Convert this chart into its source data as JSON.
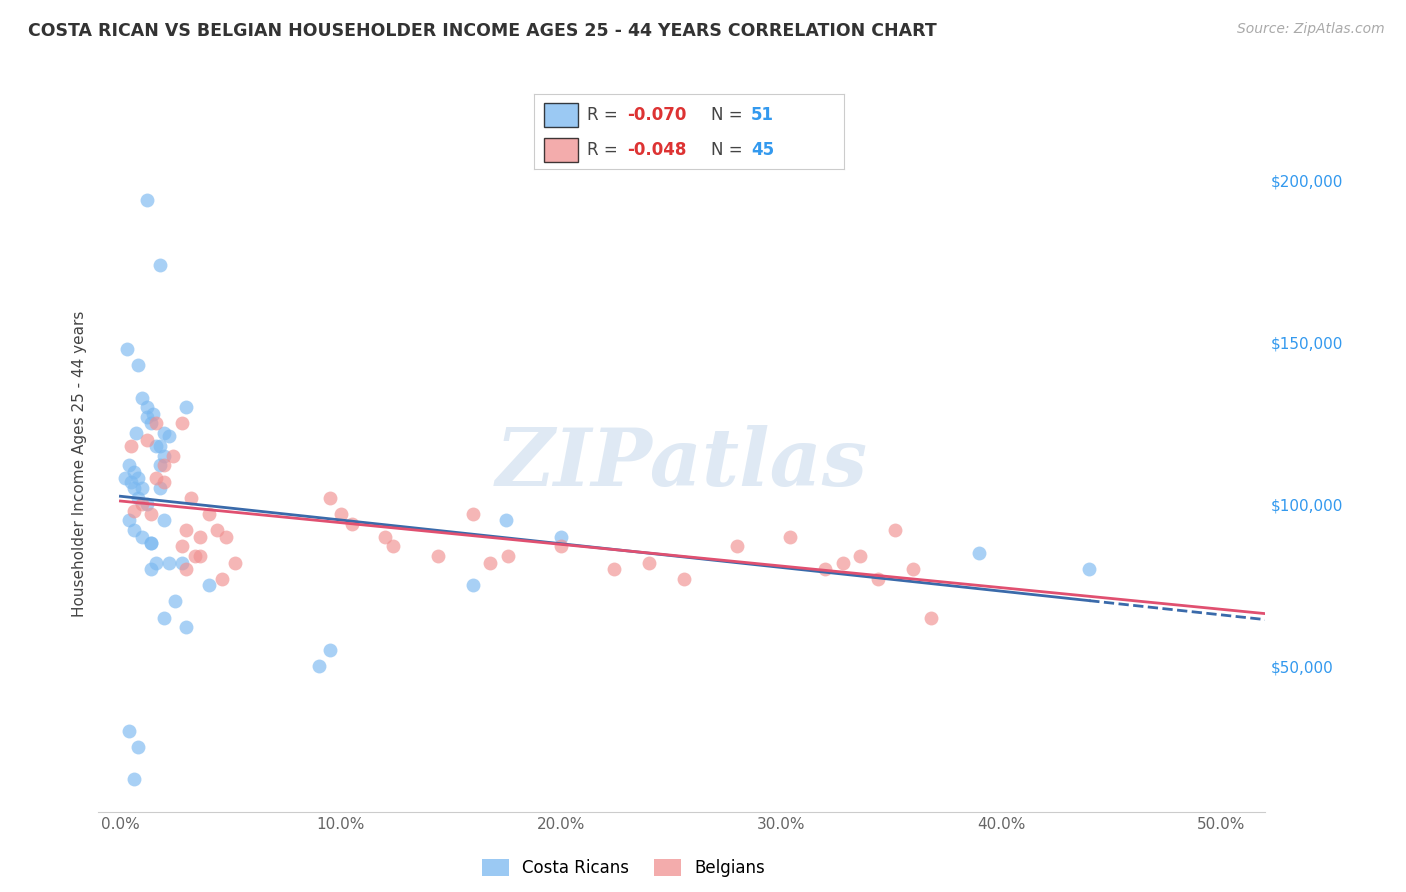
{
  "title": "COSTA RICAN VS BELGIAN HOUSEHOLDER INCOME AGES 25 - 44 YEARS CORRELATION CHART",
  "source": "Source: ZipAtlas.com",
  "ylabel": "Householder Income Ages 25 - 44 years",
  "xlabel_ticks": [
    "0.0%",
    "10.0%",
    "20.0%",
    "30.0%",
    "40.0%",
    "50.0%"
  ],
  "xlabel_vals": [
    0.0,
    0.1,
    0.2,
    0.3,
    0.4,
    0.5
  ],
  "ylabel_ticks": [
    "$50,000",
    "$100,000",
    "$150,000",
    "$200,000"
  ],
  "ylabel_vals": [
    50000,
    100000,
    150000,
    200000
  ],
  "xlim": [
    -0.01,
    0.52
  ],
  "ylim": [
    5000,
    220000
  ],
  "legend_cr_r": "-0.070",
  "legend_cr_n": "51",
  "legend_be_r": "-0.048",
  "legend_be_n": "45",
  "cr_color": "#7ab8f0",
  "be_color": "#f09090",
  "cr_line_color": "#3a6aaa",
  "be_line_color": "#e05070",
  "watermark": "ZIPatlas",
  "background_color": "#ffffff",
  "grid_color": "#dddddd",
  "costa_ricans_x": [
    0.005,
    0.012,
    0.018,
    0.003,
    0.008,
    0.01,
    0.012,
    0.015,
    0.007,
    0.014,
    0.018,
    0.02,
    0.016,
    0.022,
    0.02,
    0.018,
    0.002,
    0.004,
    0.006,
    0.008,
    0.006,
    0.01,
    0.008,
    0.012,
    0.018,
    0.03,
    0.004,
    0.006,
    0.01,
    0.014,
    0.02,
    0.014,
    0.022,
    0.014,
    0.016,
    0.028,
    0.02,
    0.03,
    0.04,
    0.175,
    0.2,
    0.16,
    0.095,
    0.09,
    0.44,
    0.004,
    0.008,
    0.025,
    0.006,
    0.012,
    0.39
  ],
  "costa_ricans_y": [
    107000,
    194000,
    174000,
    148000,
    143000,
    133000,
    127000,
    128000,
    122000,
    125000,
    118000,
    122000,
    118000,
    121000,
    115000,
    112000,
    108000,
    112000,
    110000,
    108000,
    105000,
    105000,
    102000,
    100000,
    105000,
    130000,
    95000,
    92000,
    90000,
    88000,
    95000,
    88000,
    82000,
    80000,
    82000,
    82000,
    65000,
    62000,
    75000,
    95000,
    90000,
    75000,
    55000,
    50000,
    80000,
    30000,
    25000,
    70000,
    15000,
    130000,
    85000
  ],
  "belgians_x": [
    0.005,
    0.012,
    0.016,
    0.02,
    0.016,
    0.024,
    0.028,
    0.006,
    0.01,
    0.014,
    0.02,
    0.032,
    0.03,
    0.036,
    0.028,
    0.034,
    0.03,
    0.04,
    0.036,
    0.044,
    0.048,
    0.046,
    0.052,
    0.095,
    0.1,
    0.105,
    0.12,
    0.124,
    0.144,
    0.16,
    0.168,
    0.176,
    0.2,
    0.224,
    0.24,
    0.256,
    0.28,
    0.304,
    0.32,
    0.328,
    0.336,
    0.344,
    0.352,
    0.36,
    0.368
  ],
  "belgians_y": [
    118000,
    120000,
    125000,
    112000,
    108000,
    115000,
    125000,
    98000,
    100000,
    97000,
    107000,
    102000,
    92000,
    90000,
    87000,
    84000,
    80000,
    97000,
    84000,
    92000,
    90000,
    77000,
    82000,
    102000,
    97000,
    94000,
    90000,
    87000,
    84000,
    97000,
    82000,
    84000,
    87000,
    80000,
    82000,
    77000,
    87000,
    90000,
    80000,
    82000,
    84000,
    77000,
    92000,
    80000,
    65000
  ]
}
